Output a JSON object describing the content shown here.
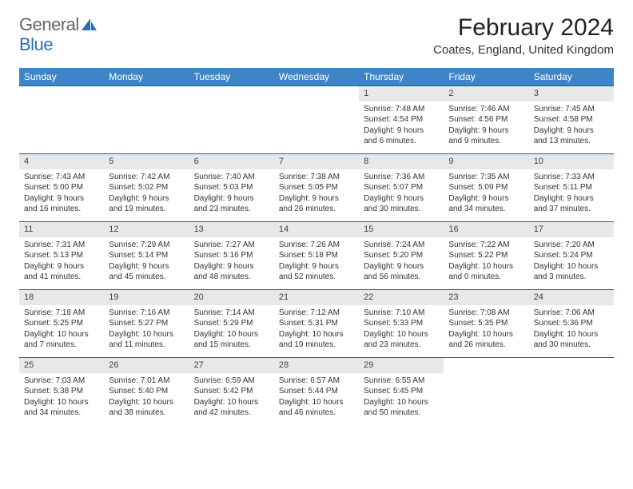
{
  "brand": {
    "part1": "General",
    "part2": "Blue"
  },
  "title": "February 2024",
  "location": "Coates, England, United Kingdom",
  "colors": {
    "header_bg": "#3d85c6",
    "row_border": "#2a5a9a",
    "daynum_bg": "#e8e8e8"
  },
  "weekdays": [
    "Sunday",
    "Monday",
    "Tuesday",
    "Wednesday",
    "Thursday",
    "Friday",
    "Saturday"
  ],
  "leading_blanks": 4,
  "days": [
    {
      "n": "1",
      "sr": "7:48 AM",
      "ss": "4:54 PM",
      "dl": "9 hours and 6 minutes."
    },
    {
      "n": "2",
      "sr": "7:46 AM",
      "ss": "4:56 PM",
      "dl": "9 hours and 9 minutes."
    },
    {
      "n": "3",
      "sr": "7:45 AM",
      "ss": "4:58 PM",
      "dl": "9 hours and 13 minutes."
    },
    {
      "n": "4",
      "sr": "7:43 AM",
      "ss": "5:00 PM",
      "dl": "9 hours and 16 minutes."
    },
    {
      "n": "5",
      "sr": "7:42 AM",
      "ss": "5:02 PM",
      "dl": "9 hours and 19 minutes."
    },
    {
      "n": "6",
      "sr": "7:40 AM",
      "ss": "5:03 PM",
      "dl": "9 hours and 23 minutes."
    },
    {
      "n": "7",
      "sr": "7:38 AM",
      "ss": "5:05 PM",
      "dl": "9 hours and 26 minutes."
    },
    {
      "n": "8",
      "sr": "7:36 AM",
      "ss": "5:07 PM",
      "dl": "9 hours and 30 minutes."
    },
    {
      "n": "9",
      "sr": "7:35 AM",
      "ss": "5:09 PM",
      "dl": "9 hours and 34 minutes."
    },
    {
      "n": "10",
      "sr": "7:33 AM",
      "ss": "5:11 PM",
      "dl": "9 hours and 37 minutes."
    },
    {
      "n": "11",
      "sr": "7:31 AM",
      "ss": "5:13 PM",
      "dl": "9 hours and 41 minutes."
    },
    {
      "n": "12",
      "sr": "7:29 AM",
      "ss": "5:14 PM",
      "dl": "9 hours and 45 minutes."
    },
    {
      "n": "13",
      "sr": "7:27 AM",
      "ss": "5:16 PM",
      "dl": "9 hours and 48 minutes."
    },
    {
      "n": "14",
      "sr": "7:26 AM",
      "ss": "5:18 PM",
      "dl": "9 hours and 52 minutes."
    },
    {
      "n": "15",
      "sr": "7:24 AM",
      "ss": "5:20 PM",
      "dl": "9 hours and 56 minutes."
    },
    {
      "n": "16",
      "sr": "7:22 AM",
      "ss": "5:22 PM",
      "dl": "10 hours and 0 minutes."
    },
    {
      "n": "17",
      "sr": "7:20 AM",
      "ss": "5:24 PM",
      "dl": "10 hours and 3 minutes."
    },
    {
      "n": "18",
      "sr": "7:18 AM",
      "ss": "5:25 PM",
      "dl": "10 hours and 7 minutes."
    },
    {
      "n": "19",
      "sr": "7:16 AM",
      "ss": "5:27 PM",
      "dl": "10 hours and 11 minutes."
    },
    {
      "n": "20",
      "sr": "7:14 AM",
      "ss": "5:29 PM",
      "dl": "10 hours and 15 minutes."
    },
    {
      "n": "21",
      "sr": "7:12 AM",
      "ss": "5:31 PM",
      "dl": "10 hours and 19 minutes."
    },
    {
      "n": "22",
      "sr": "7:10 AM",
      "ss": "5:33 PM",
      "dl": "10 hours and 23 minutes."
    },
    {
      "n": "23",
      "sr": "7:08 AM",
      "ss": "5:35 PM",
      "dl": "10 hours and 26 minutes."
    },
    {
      "n": "24",
      "sr": "7:06 AM",
      "ss": "5:36 PM",
      "dl": "10 hours and 30 minutes."
    },
    {
      "n": "25",
      "sr": "7:03 AM",
      "ss": "5:38 PM",
      "dl": "10 hours and 34 minutes."
    },
    {
      "n": "26",
      "sr": "7:01 AM",
      "ss": "5:40 PM",
      "dl": "10 hours and 38 minutes."
    },
    {
      "n": "27",
      "sr": "6:59 AM",
      "ss": "5:42 PM",
      "dl": "10 hours and 42 minutes."
    },
    {
      "n": "28",
      "sr": "6:57 AM",
      "ss": "5:44 PM",
      "dl": "10 hours and 46 minutes."
    },
    {
      "n": "29",
      "sr": "6:55 AM",
      "ss": "5:45 PM",
      "dl": "10 hours and 50 minutes."
    }
  ],
  "labels": {
    "sunrise": "Sunrise: ",
    "sunset": "Sunset: ",
    "daylight": "Daylight: "
  }
}
